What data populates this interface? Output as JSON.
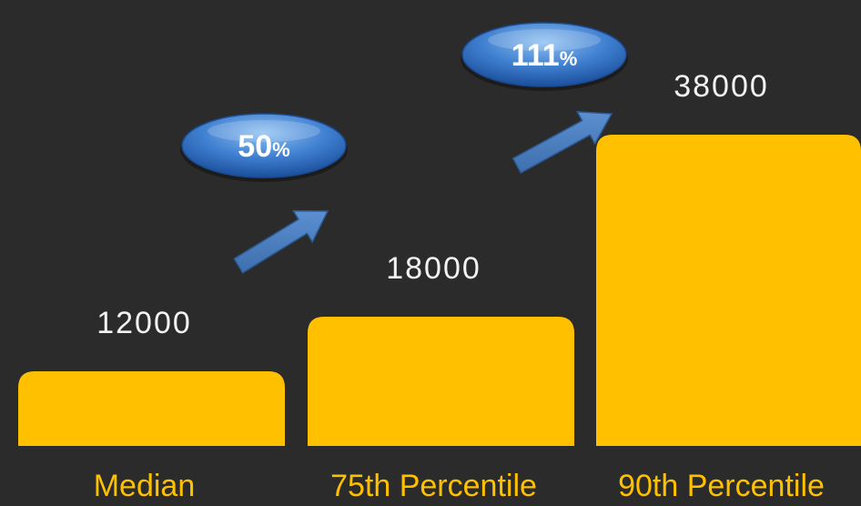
{
  "colors": {
    "background": "#2b2b2b",
    "bar": "#ffc000",
    "value_text": "#f2f2f2",
    "category_text": "#ffc000",
    "badge_light": "#7fb2ec",
    "badge_dark": "#1f56a8",
    "arrow": "#4f81bd"
  },
  "chart_data": {
    "type": "bar",
    "title": "",
    "xlabel": "",
    "ylabel": "",
    "categories": [
      "Median",
      "75th Percentile",
      "90th Percentile"
    ],
    "values": [
      12000,
      18000,
      38000
    ],
    "value_labels": [
      "12000",
      "18000",
      "38000"
    ],
    "grid": false,
    "legend": "none",
    "increases": [
      {
        "from": "Median",
        "to": "75th Percentile",
        "number": "50",
        "unit": "%"
      },
      {
        "from": "75th Percentile",
        "to": "90th Percentile",
        "number": "111",
        "unit": "%"
      }
    ]
  }
}
